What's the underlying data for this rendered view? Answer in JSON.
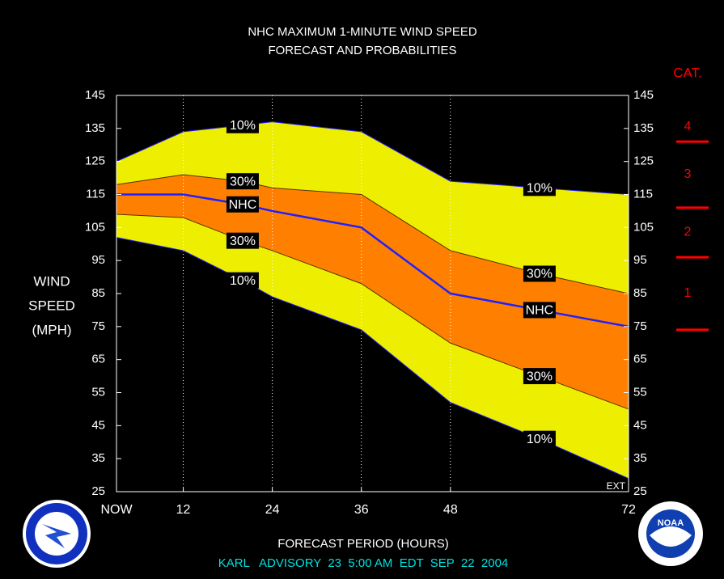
{
  "chart_data": {
    "type": "band",
    "title": [
      "NHC MAXIMUM 1-MINUTE WIND SPEED",
      "FORECAST AND PROBABILITIES"
    ],
    "ylabel": [
      "WIND",
      "SPEED",
      "(MPH)"
    ],
    "xlabel": "FORECAST PERIOD (HOURS)",
    "footer": "KARL   ADVISORY  23  5:00 AM  EDT  SEP  22  2004",
    "corner_note": "EXT",
    "x": [
      3,
      12,
      20,
      24,
      36,
      48,
      60,
      72
    ],
    "xlim": [
      3,
      72
    ],
    "xticks": [
      {
        "value": 3,
        "label": "NOW"
      },
      12,
      24,
      36,
      48,
      72
    ],
    "ylim": [
      25,
      145
    ],
    "yticks": [
      25,
      35,
      45,
      55,
      65,
      75,
      85,
      95,
      105,
      115,
      125,
      135,
      145
    ],
    "grid": true,
    "series": [
      {
        "name": "10%",
        "color": "#2020ff",
        "fill": "#eeee00",
        "values": [
          125,
          134,
          136,
          137,
          134,
          119,
          117,
          115
        ]
      },
      {
        "name": "30%",
        "color": "#553300",
        "fill": "#ff8000",
        "values": [
          118,
          121,
          119,
          117,
          115,
          98,
          91,
          85
        ]
      },
      {
        "name": "NHC",
        "color": "#2020ff",
        "fill": "#ff8000",
        "values": [
          115,
          115,
          112,
          110,
          105,
          85,
          80,
          75
        ]
      },
      {
        "name": "30%",
        "color": "#553300",
        "fill": "#eeee00",
        "values": [
          109,
          108,
          101,
          98,
          88,
          70,
          60,
          50
        ]
      },
      {
        "name": "10%",
        "color": "#2020ff",
        "values": [
          102,
          98,
          89,
          84,
          74,
          52,
          41,
          29
        ]
      }
    ],
    "category_scale": {
      "title": "CAT.",
      "thresholds": [
        74,
        96,
        111,
        131
      ],
      "labels": [
        "1",
        "2",
        "3",
        "4"
      ],
      "color": "#ff0000"
    },
    "logo_text": "NOAA"
  }
}
